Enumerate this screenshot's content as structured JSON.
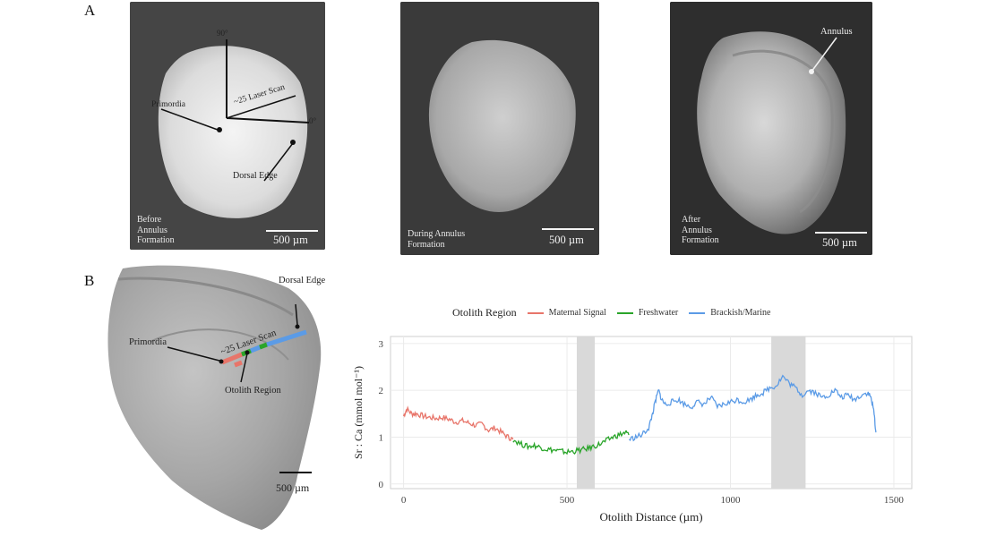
{
  "panelA": {
    "letter": "A",
    "photo1": {
      "labels": {
        "angle90": "90°",
        "angle0": "0°",
        "scan": "~25 Laser Scan",
        "primordia": "Primordia",
        "dorsal": "Dorsal Edge"
      },
      "caption": [
        "Before",
        "Annulus",
        "Formation"
      ],
      "scale": "500 µm"
    },
    "photo2": {
      "caption": [
        "During Annulus",
        "Formation"
      ],
      "scale": "500 µm"
    },
    "photo3": {
      "labels": {
        "annulus": "Annulus"
      },
      "caption": [
        "After",
        "Annulus",
        "Formation"
      ],
      "scale": "500 µm"
    }
  },
  "panelB": {
    "letter": "B",
    "labels": {
      "dorsal": "Dorsal Edge",
      "scan": "~25 Laser Scan",
      "primordia": "Primordia",
      "region": "Otolith Region"
    },
    "scale": "500 µm"
  },
  "colors": {
    "maternal": "#e8756a",
    "freshwater": "#2aa52a",
    "marine": "#5b9be6",
    "shade": "#d9d9d9"
  },
  "chart_data": {
    "type": "line",
    "legend_title": "Otolith Region",
    "xlabel": "Otolith Distance (µm)",
    "ylabel": "Sr : Ca (mmol mol⁻¹)",
    "xlim": [
      -40,
      1555
    ],
    "ylim": [
      -0.1,
      3.15
    ],
    "xticks": [
      0,
      500,
      1000,
      1500
    ],
    "yticks": [
      0,
      1,
      2,
      3
    ],
    "shaded_regions": [
      [
        530,
        585
      ],
      [
        1125,
        1230
      ]
    ],
    "series": [
      {
        "name": "Maternal Signal",
        "color": "#e8756a",
        "x": [
          0,
          10,
          25,
          40,
          60,
          80,
          100,
          120,
          140,
          160,
          180,
          200,
          220,
          240,
          260,
          280,
          300,
          320,
          335
        ],
        "y": [
          1.45,
          1.6,
          1.5,
          1.5,
          1.45,
          1.42,
          1.4,
          1.42,
          1.38,
          1.32,
          1.35,
          1.3,
          1.25,
          1.28,
          1.15,
          1.2,
          1.1,
          1.0,
          0.95
        ]
      },
      {
        "name": "Freshwater",
        "color": "#2aa52a",
        "x": [
          335,
          360,
          380,
          400,
          420,
          440,
          460,
          480,
          500,
          520,
          540,
          560,
          580,
          600,
          620,
          640,
          660,
          680,
          690
        ],
        "y": [
          0.95,
          0.85,
          0.8,
          0.82,
          0.78,
          0.74,
          0.72,
          0.7,
          0.68,
          0.7,
          0.72,
          0.75,
          0.8,
          0.85,
          0.92,
          1.0,
          1.05,
          1.1,
          1.05
        ]
      },
      {
        "name": "Brackish/Marine",
        "color": "#5b9be6",
        "x": [
          690,
          710,
          730,
          750,
          760,
          770,
          780,
          790,
          800,
          820,
          840,
          860,
          880,
          900,
          920,
          940,
          960,
          980,
          1000,
          1020,
          1040,
          1060,
          1080,
          1100,
          1120,
          1140,
          1160,
          1180,
          1200,
          1220,
          1240,
          1260,
          1280,
          1300,
          1320,
          1340,
          1360,
          1380,
          1400,
          1420,
          1430,
          1440,
          1445
        ],
        "y": [
          0.95,
          1.0,
          1.05,
          1.2,
          1.45,
          1.75,
          2.0,
          1.8,
          1.7,
          1.75,
          1.8,
          1.7,
          1.65,
          1.75,
          1.7,
          1.85,
          1.65,
          1.7,
          1.75,
          1.8,
          1.75,
          1.8,
          1.9,
          1.95,
          2.05,
          2.1,
          2.3,
          2.15,
          2.05,
          1.9,
          2.0,
          1.95,
          1.85,
          1.9,
          2.0,
          1.85,
          1.9,
          1.8,
          1.9,
          1.95,
          1.85,
          1.5,
          1.1
        ]
      }
    ]
  }
}
